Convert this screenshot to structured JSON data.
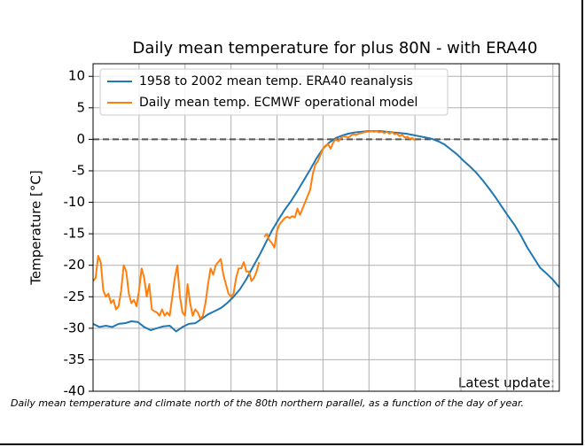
{
  "chart_data": {
    "type": "line",
    "title": "Daily mean temperature for plus 80N - with ERA40",
    "y_label": "Temperature [°C]",
    "annotation": "Latest update:",
    "caption": "Daily mean temperature and climate north of the 80th northern parallel, as a function of the day of year.",
    "xlim": [
      0,
      365
    ],
    "xticks": [
      36,
      72,
      108,
      144,
      180,
      216,
      252,
      288,
      324,
      360
    ],
    "ylim": [
      -40,
      12
    ],
    "yticks": [
      -40,
      -35,
      -30,
      -25,
      -20,
      -15,
      -10,
      -5,
      0,
      5,
      10
    ],
    "grid": true,
    "hline": {
      "value": 0,
      "color": "#555555"
    },
    "legend": "upper left",
    "series": [
      {
        "name": "1958 to 2002 mean temp. ERA40 reanalysis",
        "color": "#1f77b4",
        "x": [
          0,
          5,
          10,
          15,
          20,
          25,
          30,
          35,
          40,
          45,
          50,
          55,
          60,
          65,
          70,
          75,
          80,
          85,
          90,
          95,
          100,
          105,
          110,
          115,
          120,
          125,
          130,
          135,
          140,
          145,
          150,
          155,
          160,
          165,
          170,
          175,
          180,
          185,
          190,
          195,
          200,
          205,
          210,
          215,
          220,
          225,
          230,
          235,
          240,
          245,
          250,
          255,
          260,
          265,
          270,
          275,
          280,
          285,
          290,
          295,
          300,
          305,
          310,
          315,
          320,
          325,
          330,
          335,
          340,
          345,
          350,
          355,
          360,
          365
        ],
        "values": [
          -29.3,
          -29.8,
          -29.6,
          -29.8,
          -29.3,
          -29.2,
          -28.9,
          -29.0,
          -29.8,
          -30.3,
          -30.0,
          -29.7,
          -29.6,
          -30.5,
          -29.8,
          -29.3,
          -29.2,
          -28.5,
          -27.8,
          -27.3,
          -26.8,
          -26.0,
          -25.0,
          -23.8,
          -22.2,
          -20.3,
          -18.5,
          -16.5,
          -14.5,
          -12.8,
          -11.2,
          -9.8,
          -8.2,
          -6.5,
          -4.8,
          -3.0,
          -1.5,
          -0.5,
          0.2,
          0.6,
          0.9,
          1.1,
          1.2,
          1.3,
          1.3,
          1.3,
          1.2,
          1.1,
          1.0,
          0.9,
          0.7,
          0.5,
          0.3,
          0.1,
          -0.3,
          -0.8,
          -1.6,
          -2.4,
          -3.4,
          -4.3,
          -5.3,
          -6.5,
          -7.8,
          -9.2,
          -10.7,
          -12.2,
          -13.6,
          -15.3,
          -17.2,
          -18.8,
          -20.4,
          -21.3,
          -22.3,
          -23.5
        ]
      },
      {
        "name": "Daily mean temp. ECMWF operational model",
        "color": "#ff7f0e",
        "x": [
          0,
          2,
          4,
          6,
          8,
          10,
          12,
          14,
          16,
          18,
          20,
          22,
          24,
          26,
          28,
          30,
          32,
          34,
          36,
          38,
          40,
          42,
          44,
          46,
          48,
          50,
          52,
          54,
          56,
          58,
          60,
          62,
          64,
          66,
          68,
          70,
          72,
          74,
          76,
          78,
          80,
          82,
          84,
          86,
          88,
          90,
          92,
          94,
          96,
          98,
          100,
          102,
          104,
          106,
          108,
          110,
          112,
          114,
          116,
          118,
          120,
          122,
          124,
          126,
          128,
          130,
          132,
          134,
          136,
          138,
          140,
          142,
          144,
          146,
          148,
          150,
          152,
          154,
          156,
          158,
          160,
          162,
          164,
          166,
          168,
          170,
          172,
          174,
          176,
          178,
          180,
          182,
          184,
          186,
          188,
          190,
          192,
          194,
          196,
          198,
          200,
          202,
          204,
          206,
          208,
          210,
          212,
          214,
          216,
          218,
          220,
          222,
          224,
          226,
          228,
          230,
          232,
          234,
          236,
          238,
          240,
          242,
          244,
          246,
          248,
          250,
          252
        ],
        "values": [
          -22.5,
          -22,
          -18.5,
          -19.5,
          -24,
          -25,
          -24.5,
          -26,
          -25.5,
          -27,
          -26.5,
          -24,
          -20,
          -21,
          -24.5,
          -26,
          -25.5,
          -26.5,
          -24,
          -20.5,
          -22,
          -25,
          -23,
          -27,
          -27.3,
          -27.5,
          -28,
          -27,
          -28,
          -27.5,
          -28,
          -25,
          -22,
          -20,
          -25,
          -27.5,
          -28,
          -23,
          -26,
          -28,
          -27,
          -27.5,
          -28.5,
          -28,
          -26,
          -23,
          -20.5,
          -21.5,
          -20,
          -19.5,
          -19,
          -21.5,
          -23,
          -24.5,
          -25,
          -24.5,
          -22,
          -20.5,
          -20.5,
          -19.5,
          -21,
          -21,
          -22.5,
          -22,
          -21,
          -19.5,
          null,
          -15.5,
          -15,
          -16,
          -16.5,
          -17.2,
          -14.5,
          -13.5,
          -13,
          -12.5,
          -12.3,
          -12.5,
          -12.2,
          -12.4,
          -11,
          -12,
          -11,
          -10,
          -9,
          -8,
          -5.5,
          -4,
          -3.5,
          -2.5,
          -1.5,
          -1,
          -0.8,
          -1.5,
          -0.5,
          0,
          -0.3,
          0.2,
          0.5,
          0.4,
          0.3,
          0.6,
          0.8,
          0.7,
          0.9,
          1.0,
          1.1,
          1.2,
          1.2,
          1.3,
          1.2,
          1.3,
          1.1,
          1.2,
          1.0,
          1.2,
          0.9,
          1.2,
          0.8,
          0.9,
          0.5,
          0.7,
          0.3,
          0.4,
          0.1,
          0.2,
          -0.2
        ]
      }
    ]
  }
}
